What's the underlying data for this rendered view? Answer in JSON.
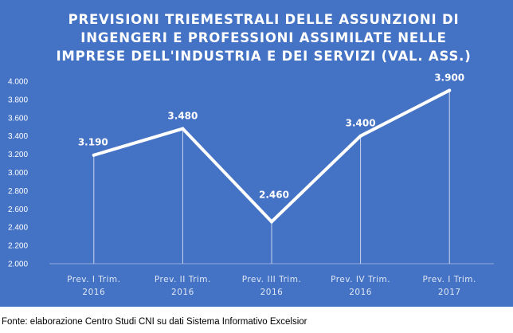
{
  "chart_data": {
    "type": "line",
    "title_lines": [
      "PREVISIONI TRIEMESTRALI DELLE ASSUNZIONI DI",
      "INGENGERI E PROFESSIONI ASSIMILATE NELLE",
      "IMPRESE DELL'INDUSTRIA E DEI SERVIZI (VAL. ASS.)"
    ],
    "categories": [
      [
        "Prev. I Trim.",
        "2016"
      ],
      [
        "Prev. II Trim.",
        "2016"
      ],
      [
        "Prev. III Trim.",
        "2016"
      ],
      [
        "Prev. IV Trim.",
        "2016"
      ],
      [
        "Prev. I Trim.",
        "2017"
      ]
    ],
    "values": [
      3190,
      3480,
      2460,
      3400,
      3900
    ],
    "value_labels": [
      "3.190",
      "3.480",
      "2.460",
      "3.400",
      "3.900"
    ],
    "yticks": [
      "2.000",
      "2.200",
      "2.400",
      "2.600",
      "2.800",
      "3.000",
      "3.200",
      "3.400",
      "3.600",
      "3.800",
      "4.000"
    ],
    "ylim": [
      2000,
      4000
    ],
    "ystep": 200,
    "grid": false,
    "drop_lines": true,
    "colors": {
      "background": "#4472c4",
      "line": "#ffffff",
      "text": "#ffffff"
    }
  },
  "source": "Fonte: elaborazione Centro Studi CNI su dati Sistema Informativo Excelsior"
}
